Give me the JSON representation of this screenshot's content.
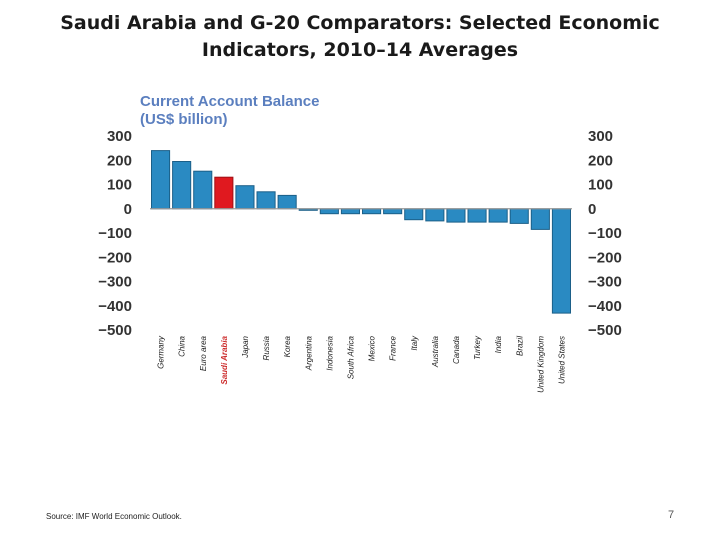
{
  "slide": {
    "title_line1": "Saudi Arabia and G-20 Comparators: Selected Economic",
    "title_line2": "Indicators, 2010–14 Averages",
    "source": "Source: IMF World Economic Outlook.",
    "page_number": "7"
  },
  "chart_data": {
    "type": "bar",
    "title_line1": "Current Account Balance",
    "title_line2": "(US$ billion)",
    "categories": [
      "Germany",
      "China",
      "Euro area",
      "Saudi Arabia",
      "Japan",
      "Russia",
      "Korea",
      "Argentina",
      "Indonesia",
      "South Africa",
      "Mexico",
      "France",
      "Italy",
      "Australia",
      "Canada",
      "Turkey",
      "India",
      "Brazil",
      "United Kingdom",
      "United States"
    ],
    "values": [
      240,
      195,
      155,
      130,
      95,
      70,
      55,
      -5,
      -20,
      -20,
      -20,
      -20,
      -45,
      -50,
      -55,
      -55,
      -55,
      -60,
      -85,
      -430
    ],
    "highlight": "Saudi Arabia",
    "ylim": [
      -500,
      300
    ],
    "yticks": [
      300,
      200,
      100,
      0,
      -100,
      -200,
      -300,
      -400,
      -500
    ],
    "ytick_labels": [
      "300",
      "200",
      "100",
      "0",
      "−100",
      "−200",
      "−300",
      "−400",
      "−500"
    ],
    "colors": {
      "bar": "#2a8ac2",
      "bar_edge": "#1b5f88",
      "highlight": "#e0191f",
      "highlight_edge": "#9e1015",
      "highlight_label": "#cc2a2a",
      "zero_line": "#999999",
      "title": "#5b7fbf"
    },
    "axes_both_sides": true,
    "grid": false,
    "legend": false
  }
}
